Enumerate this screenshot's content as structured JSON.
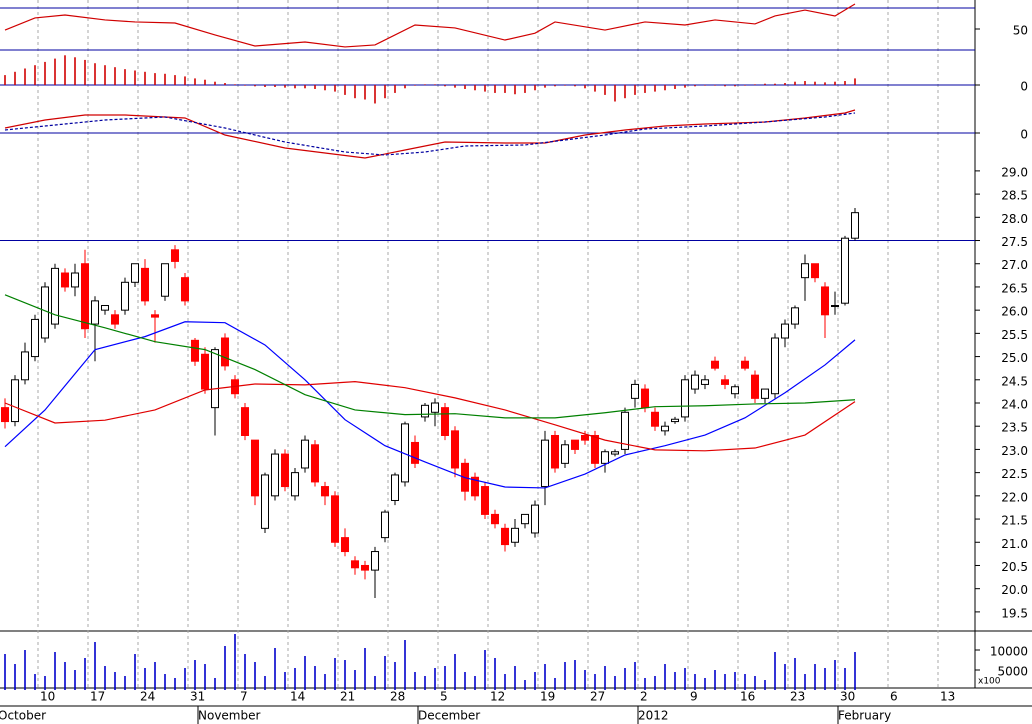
{
  "chart_data": [
    {
      "type": "line",
      "ylim": [
        30,
        77.6
      ],
      "yticks": [
        50
      ],
      "hlines": [
        70,
        30
      ],
      "series": [
        {
          "color": "#d00000",
          "x": [
            0,
            3,
            6,
            10,
            13,
            17,
            21,
            25,
            30,
            34,
            37,
            41,
            45,
            50,
            53,
            55,
            60,
            64,
            68,
            71,
            75,
            77,
            80,
            83,
            85
          ],
          "values": [
            49,
            60.5,
            63.3,
            58.6,
            56.7,
            55.7,
            44.3,
            33.8,
            37.6,
            32.9,
            34.8,
            53.8,
            51,
            39.5,
            46,
            56.7,
            49,
            56.7,
            53.8,
            58.6,
            54.8,
            62.4,
            68,
            62.4,
            73.8
          ]
        }
      ]
    },
    {
      "type": "bar",
      "ylim": [
        -0.5,
        0.5
      ],
      "yticks": [
        0
      ],
      "hlines": [
        0
      ],
      "color": "#d00000",
      "values": [
        0.15,
        0.2,
        0.25,
        0.3,
        0.35,
        0.4,
        0.45,
        0.42,
        0.38,
        0.33,
        0.3,
        0.27,
        0.24,
        0.22,
        0.2,
        0.18,
        0.17,
        0.15,
        0.13,
        0.1,
        0.08,
        0.05,
        0.03,
        0.01,
        -0.01,
        -0.02,
        -0.03,
        -0.03,
        -0.04,
        -0.05,
        -0.05,
        -0.06,
        -0.08,
        -0.1,
        -0.15,
        -0.2,
        -0.22,
        -0.28,
        -0.2,
        -0.12,
        -0.05,
        -0.01,
        0.01,
        0.01,
        -0.02,
        -0.04,
        -0.06,
        -0.08,
        -0.1,
        -0.12,
        -0.12,
        -0.14,
        -0.12,
        -0.08,
        -0.04,
        -0.02,
        -0.01,
        -0.02,
        -0.05,
        -0.1,
        -0.15,
        -0.25,
        -0.2,
        -0.15,
        -0.12,
        -0.1,
        -0.08,
        -0.06,
        -0.04,
        -0.02,
        -0.01,
        -0.01,
        -0.02,
        -0.02,
        -0.01,
        0.01,
        0.02,
        0.02,
        0.03,
        0.05,
        0.06,
        0.05,
        0.04,
        0.05,
        0.06,
        0.1
      ]
    },
    {
      "type": "line",
      "ylim": [
        -0.3,
        0.48
      ],
      "yticks": [
        0
      ],
      "hlines": [
        0
      ],
      "series": [
        {
          "color": "#d00000",
          "x": [
            0,
            4,
            8,
            12,
            18,
            22,
            28,
            32,
            36,
            40,
            44,
            50,
            54,
            58,
            62,
            66,
            70,
            76,
            80,
            84,
            85
          ],
          "values": [
            0.05,
            0.13,
            0.18,
            0.18,
            0.15,
            -0.02,
            -0.15,
            -0.2,
            -0.25,
            -0.17,
            -0.09,
            -0.1,
            -0.1,
            -0.02,
            0.03,
            0.07,
            0.09,
            0.11,
            0.15,
            0.2,
            0.23
          ]
        },
        {
          "color": "#0000a0",
          "dash": true,
          "x": [
            0,
            5,
            10,
            16,
            22,
            28,
            34,
            38,
            42,
            46,
            52,
            56,
            60,
            64,
            70,
            76,
            82,
            85
          ],
          "values": [
            0.03,
            0.08,
            0.13,
            0.16,
            0.05,
            -0.09,
            -0.19,
            -0.22,
            -0.19,
            -0.13,
            -0.12,
            -0.07,
            -0.02,
            0.04,
            0.07,
            0.11,
            0.16,
            0.2
          ]
        }
      ]
    },
    {
      "type": "candlestick",
      "ylim": [
        19.11,
        29.45
      ],
      "yticks": [
        19.5,
        {
          "value": 20,
          "label": "20.0"
        },
        20.5,
        {
          "value": 21,
          "label": "21.0"
        },
        21.5,
        {
          "value": 22,
          "label": "22.0"
        },
        22.5,
        {
          "value": 23,
          "label": "23.0"
        },
        23.5,
        {
          "value": 24,
          "label": "24.0"
        },
        24.5,
        {
          "value": 25,
          "label": "25.0"
        },
        25.5,
        {
          "value": 26,
          "label": "26.0"
        },
        26.5,
        {
          "value": 27,
          "label": "27.0"
        },
        27.5,
        {
          "value": 28,
          "label": "28.0"
        },
        28.5,
        {
          "value": 29,
          "label": "29.0"
        }
      ],
      "hlines": [
        27.5
      ],
      "up_color": "#ffffff",
      "down_color": "#ff0000",
      "open": [
        23.9,
        23.6,
        24.5,
        25.0,
        25.4,
        25.7,
        26.8,
        26.5,
        27.0,
        25.7,
        26.0,
        25.9,
        26.0,
        26.6,
        26.9,
        25.9,
        26.3,
        27.3,
        26.7,
        25.35,
        25.05,
        23.9,
        25.4,
        24.5,
        23.9,
        23.2,
        21.3,
        22.0,
        22.9,
        22.0,
        22.6,
        23.1,
        22.2,
        22.0,
        21.1,
        20.6,
        20.5,
        20.4,
        21.1,
        21.9,
        22.3,
        23.15,
        23.7,
        23.8,
        23.9,
        23.4,
        22.7,
        22.4,
        22.2,
        21.6,
        21.3,
        21.0,
        21.4,
        21.2,
        22.2,
        23.3,
        22.7,
        23.2,
        23.3,
        23.3,
        22.7,
        22.9,
        23.0,
        24.1,
        24.3,
        23.8,
        23.4,
        23.6,
        23.7,
        24.3,
        24.4,
        24.9,
        24.5,
        24.2,
        24.9,
        24.6,
        24.1,
        24.2,
        25.4,
        25.7,
        26.7,
        27.0,
        26.5,
        26.1,
        26.15,
        27.55
      ],
      "high": [
        24.1,
        24.6,
        25.3,
        25.9,
        26.6,
        27.0,
        26.9,
        27.0,
        27.3,
        26.3,
        26.1,
        26.0,
        26.7,
        27.0,
        27.1,
        26.0,
        27.0,
        27.4,
        26.8,
        25.4,
        25.2,
        25.2,
        25.5,
        24.6,
        24.0,
        23.2,
        22.5,
        23.0,
        23.0,
        22.6,
        23.3,
        23.2,
        22.3,
        22.1,
        21.3,
        20.7,
        20.6,
        20.9,
        21.7,
        22.5,
        23.6,
        23.3,
        24.0,
        24.1,
        24.0,
        23.5,
        22.8,
        22.5,
        22.3,
        21.7,
        21.4,
        21.5,
        21.6,
        21.9,
        23.4,
        23.4,
        23.2,
        23.2,
        23.4,
        23.4,
        23.0,
        23.0,
        23.9,
        24.5,
        24.4,
        23.9,
        23.6,
        23.7,
        24.6,
        24.7,
        24.6,
        25.0,
        24.6,
        24.4,
        25.0,
        24.7,
        24.3,
        25.5,
        25.8,
        26.1,
        27.2,
        27.0,
        26.6,
        26.4,
        27.6,
        28.2
      ],
      "low": [
        23.45,
        23.5,
        24.4,
        24.9,
        25.3,
        25.6,
        26.4,
        26.3,
        25.4,
        24.9,
        25.9,
        25.6,
        25.9,
        26.5,
        26.1,
        25.3,
        26.2,
        26.9,
        26.1,
        24.8,
        24.2,
        23.3,
        24.7,
        24.1,
        23.2,
        21.8,
        21.2,
        21.9,
        22.1,
        21.9,
        22.5,
        22.2,
        21.8,
        20.9,
        20.7,
        20.3,
        20.2,
        19.8,
        21.0,
        21.8,
        22.2,
        22.6,
        23.6,
        23.5,
        23.2,
        22.4,
        21.9,
        21.9,
        21.5,
        21.3,
        20.8,
        20.9,
        21.3,
        21.1,
        21.8,
        22.5,
        22.6,
        22.9,
        23.1,
        22.6,
        22.5,
        22.85,
        22.9,
        23.9,
        23.8,
        23.4,
        23.3,
        23.55,
        23.6,
        24.2,
        24.3,
        24.7,
        24.3,
        24.1,
        24.7,
        24.0,
        24.0,
        24.1,
        25.2,
        25.6,
        26.2,
        26.6,
        25.4,
        25.9,
        26.1,
        27.5
      ],
      "close": [
        23.6,
        24.5,
        25.1,
        25.8,
        26.5,
        26.9,
        26.5,
        26.8,
        25.6,
        26.2,
        26.1,
        25.7,
        26.6,
        27.0,
        26.2,
        25.85,
        27.0,
        27.05,
        26.2,
        24.9,
        24.3,
        25.15,
        24.8,
        24.2,
        23.3,
        22.0,
        22.45,
        22.9,
        22.2,
        22.5,
        23.2,
        22.3,
        22.0,
        21.0,
        20.8,
        20.45,
        20.4,
        20.8,
        21.65,
        22.45,
        23.55,
        22.7,
        23.95,
        24.0,
        23.3,
        22.6,
        22.1,
        22.0,
        21.6,
        21.4,
        20.95,
        21.3,
        21.6,
        21.8,
        23.2,
        22.6,
        23.1,
        23.0,
        23.2,
        22.7,
        22.95,
        22.95,
        23.8,
        24.4,
        23.9,
        23.5,
        23.5,
        23.65,
        24.5,
        24.6,
        24.5,
        24.75,
        24.4,
        24.35,
        24.75,
        24.1,
        24.3,
        25.4,
        25.7,
        26.05,
        27.0,
        26.7,
        25.9,
        26.1,
        27.55,
        28.1
      ],
      "overlays": [
        {
          "color": "#0000ff",
          "x": [
            0,
            4,
            9,
            14,
            18,
            22,
            26,
            30,
            34,
            38,
            42,
            46,
            50,
            54,
            58,
            62,
            66,
            70,
            74,
            78,
            82,
            85
          ],
          "values": [
            23.06,
            23.85,
            25.15,
            25.43,
            25.75,
            25.73,
            25.25,
            24.5,
            23.64,
            23.08,
            22.73,
            22.39,
            22.19,
            22.17,
            22.47,
            22.88,
            23.08,
            23.31,
            23.68,
            24.22,
            24.82,
            25.36
          ]
        },
        {
          "color": "#e00000",
          "x": [
            0,
            5,
            10,
            15,
            20,
            25,
            30,
            35,
            40,
            45,
            50,
            55,
            60,
            65,
            70,
            75,
            80,
            85
          ],
          "values": [
            24.0,
            23.57,
            23.63,
            23.85,
            24.28,
            24.41,
            24.39,
            24.46,
            24.33,
            24.11,
            23.85,
            23.53,
            23.2,
            22.99,
            22.97,
            23.03,
            23.31,
            24.03
          ]
        },
        {
          "color": "#008000",
          "x": [
            0,
            5,
            10,
            15,
            20,
            25,
            30,
            35,
            40,
            45,
            50,
            55,
            60,
            65,
            70,
            75,
            80,
            85
          ],
          "values": [
            26.33,
            25.9,
            25.62,
            25.32,
            25.15,
            24.72,
            24.18,
            23.85,
            23.75,
            23.77,
            23.68,
            23.68,
            23.79,
            23.92,
            23.94,
            23.98,
            24.0,
            24.07
          ]
        }
      ]
    },
    {
      "type": "bar",
      "ylim": [
        0,
        14500
      ],
      "yticks": [
        10000,
        5000
      ],
      "unit_label": "x100",
      "color": "#0000cc",
      "values": [
        9000,
        6500,
        10000,
        4000,
        3500,
        9500,
        7000,
        5000,
        8000,
        12000,
        6000,
        4500,
        3500,
        9000,
        5500,
        7000,
        4000,
        3000,
        5500,
        7500,
        6500,
        3000,
        11000,
        14000,
        9000,
        7000,
        3500,
        10500,
        4500,
        5500,
        8500,
        6000,
        4000,
        8000,
        7500,
        5000,
        10500,
        3500,
        8500,
        7000,
        12500,
        4500,
        3500,
        5500,
        6000,
        9000,
        4500,
        3500,
        10000,
        8000,
        4000,
        6000,
        2500,
        4500,
        6500,
        3000,
        7000,
        7500,
        5000,
        4000,
        6000,
        3500,
        5500,
        7000,
        3000,
        3500,
        6500,
        4500,
        5500,
        4000,
        3000,
        5000,
        4000,
        4500,
        4000,
        3500,
        2500,
        9500,
        6500,
        8000,
        4000,
        6500,
        5500,
        7500,
        5500,
        9500,
        null,
        null,
        null,
        null,
        null,
        null,
        null,
        null,
        null
      ],
      "categories": [
        null,
        null,
        null,
        null,
        "10",
        null,
        null,
        null,
        null,
        "17",
        null,
        null,
        null,
        null,
        "24",
        null,
        null,
        null,
        null,
        "31",
        null,
        null,
        null,
        null,
        "7",
        null,
        null,
        null,
        null,
        "14",
        null,
        null,
        null,
        null,
        "21",
        null,
        null,
        null,
        null,
        "28",
        null,
        null,
        null,
        null,
        "5",
        null,
        null,
        null,
        null,
        "12",
        null,
        null,
        null,
        null,
        "19",
        null,
        null,
        null,
        null,
        "27",
        null,
        null,
        null,
        null,
        "2",
        null,
        null,
        null,
        null,
        "9",
        null,
        null,
        null,
        null,
        "16",
        null,
        null,
        null,
        null,
        "23",
        null,
        null,
        null,
        null,
        "30",
        null,
        null,
        null,
        null,
        "6",
        null,
        null,
        null,
        null,
        "13"
      ],
      "month_labels": [
        {
          "label": "October",
          "start": 0
        },
        {
          "label": "November",
          "start": 20
        },
        {
          "label": "December",
          "start": 42
        },
        {
          "label": "2012",
          "start": 64
        },
        {
          "label": "February",
          "start": 84
        }
      ]
    }
  ]
}
